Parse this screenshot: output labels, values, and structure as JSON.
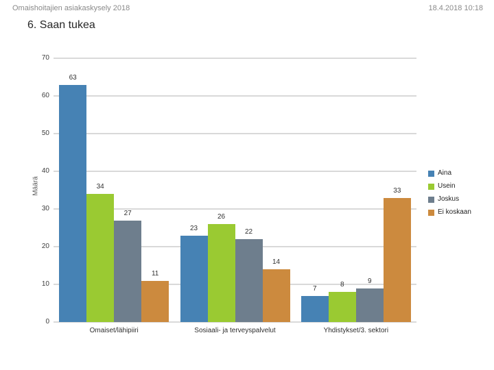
{
  "header": {
    "title": "Omaishoitajien asiakaskysely 2018",
    "timestamp": "18.4.2018 10:18"
  },
  "page_title": "6. Saan tukea",
  "chart_data": {
    "type": "bar",
    "title": "6. Saan tukea",
    "categories": [
      "Omaiset/lähipiiri",
      "Sosiaali- ja terveyspalvelut",
      "Yhdistykset/3. sektori"
    ],
    "series": [
      {
        "name": "Aina",
        "color": "#4682b4",
        "values": [
          63,
          23,
          7
        ]
      },
      {
        "name": "Usein",
        "color": "#9aca32",
        "values": [
          34,
          26,
          8
        ]
      },
      {
        "name": "Joskus",
        "color": "#6e7e8d",
        "values": [
          27,
          22,
          9
        ]
      },
      {
        "name": "Ei koskaan",
        "color": "#cc8a3e",
        "values": [
          11,
          14,
          33
        ]
      }
    ],
    "xlabel": "",
    "ylabel": "Määrä",
    "ylim": [
      0,
      70
    ],
    "yticks": [
      0,
      10,
      20,
      30,
      40,
      50,
      60,
      70
    ],
    "grid": true,
    "gridline_color": "#d9d9d9",
    "legend_position": "right",
    "value_labels_shown": true
  }
}
